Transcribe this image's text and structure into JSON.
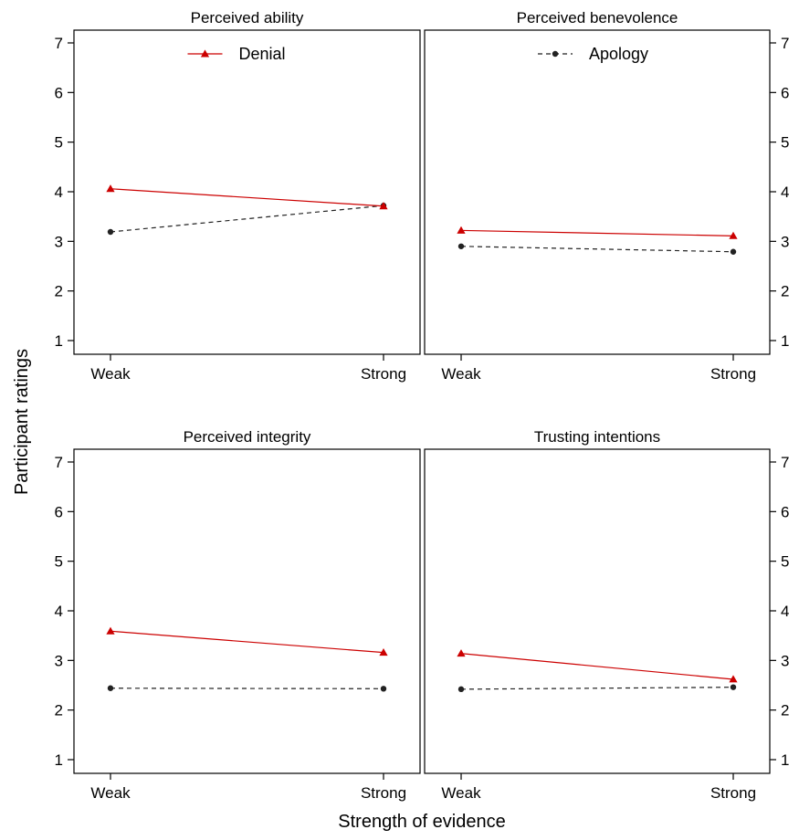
{
  "chart_data": {
    "type": "line",
    "layout": "2x2 panels",
    "xlabel": "Strength of evidence",
    "ylabel": "Participant ratings",
    "categories": [
      "Weak",
      "Strong"
    ],
    "ylim": [
      1,
      7
    ],
    "yticks": [
      1,
      2,
      3,
      4,
      5,
      6,
      7
    ],
    "grid": false,
    "legend": [
      {
        "name": "Denial",
        "panel": 0,
        "placement": "top-center"
      },
      {
        "name": "Apology",
        "panel": 1,
        "placement": "top-center"
      }
    ],
    "panels": [
      {
        "title": "Perceived ability",
        "series": [
          {
            "name": "Denial",
            "values": [
              4.06,
              3.71
            ]
          },
          {
            "name": "Apology",
            "values": [
              3.19,
              3.72
            ]
          }
        ]
      },
      {
        "title": "Perceived benevolence",
        "series": [
          {
            "name": "Denial",
            "values": [
              3.22,
              3.11
            ]
          },
          {
            "name": "Apology",
            "values": [
              2.9,
              2.79
            ]
          }
        ]
      },
      {
        "title": "Perceived integrity",
        "series": [
          {
            "name": "Denial",
            "values": [
              3.59,
              3.16
            ]
          },
          {
            "name": "Apology",
            "values": [
              2.44,
              2.43
            ]
          }
        ]
      },
      {
        "title": "Trusting intentions",
        "series": [
          {
            "name": "Denial",
            "values": [
              3.14,
              2.62
            ]
          },
          {
            "name": "Apology",
            "values": [
              2.42,
              2.46
            ]
          }
        ]
      }
    ],
    "series_style": {
      "Denial": {
        "color": "#cc0000",
        "marker": "triangle",
        "line": "solid"
      },
      "Apology": {
        "color": "#222222",
        "marker": "circle",
        "line": "dashed"
      }
    }
  }
}
